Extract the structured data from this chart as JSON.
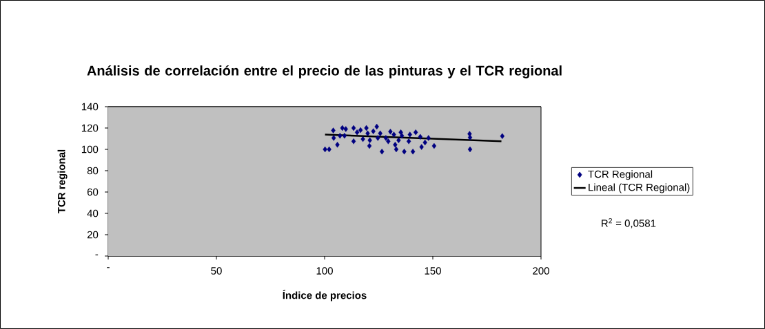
{
  "chart_data": {
    "type": "scatter",
    "title": "Análisis de correlación entre el precio de las pinturas y el TCR regional",
    "xlabel": "Índice de precios",
    "ylabel": "TCR regional",
    "xlim": [
      0,
      200
    ],
    "xticks": [
      {
        "value": 0,
        "label": "-"
      },
      50,
      100,
      150,
      200
    ],
    "ylim": [
      0,
      140
    ],
    "yticks": [
      {
        "value": 0,
        "label": "-"
      },
      20,
      40,
      60,
      80,
      100,
      120,
      140
    ],
    "grid": "y",
    "legend": "right",
    "marker": "diamond",
    "series": [
      {
        "name": "TCR Regional",
        "color": "#000080",
        "x": [
          100.2,
          102.1,
          104.0,
          104.2,
          105.9,
          107.1,
          108.2,
          109.8,
          109.2,
          113.4,
          113.4,
          115.0,
          116.6,
          117.7,
          119.3,
          119.9,
          120.9,
          120.7,
          122.5,
          124.1,
          124.6,
          125.7,
          126.5,
          128.3,
          129.4,
          130.4,
          132.0,
          132.6,
          133.1,
          134.2,
          135.2,
          135.7,
          136.8,
          138.9,
          139.4,
          140.8,
          142.1,
          144.2,
          144.8,
          146.4,
          148.0,
          150.6,
          167.0,
          167.2,
          167.2,
          182.1
        ],
        "values": [
          100.0,
          100.0,
          117.7,
          110.7,
          104.3,
          112.8,
          120.0,
          119.0,
          112.8,
          120.0,
          107.5,
          116.0,
          118.0,
          109.6,
          120.0,
          115.0,
          108.5,
          103.2,
          117.0,
          121.3,
          110.7,
          115.0,
          97.9,
          110.7,
          107.5,
          116.6,
          113.8,
          104.3,
          100.0,
          108.5,
          116.0,
          112.8,
          97.9,
          107.5,
          113.8,
          97.9,
          116.0,
          111.7,
          102.2,
          106.4,
          110.7,
          103.2,
          114.5,
          111.1,
          100.0,
          112.4
        ]
      },
      {
        "name": "Lineal (TCR Regional)",
        "type": "line",
        "color": "#000000",
        "x": [
          100.2,
          181.7
        ],
        "values": [
          113.8,
          107.5
        ],
        "marker": "none"
      }
    ],
    "annotations": [
      "R$^{2}$ = 0,0581"
    ]
  }
}
